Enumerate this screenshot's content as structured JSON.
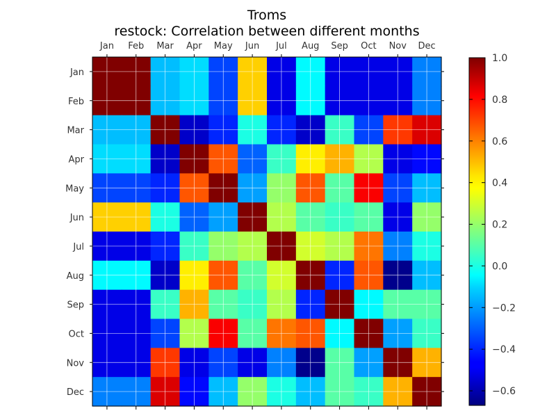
{
  "chart_data": {
    "type": "heatmap",
    "title": "Troms",
    "subtitle": "restock: Correlation between different months",
    "x_categories": [
      "Jan",
      "Feb",
      "Mar",
      "Apr",
      "May",
      "Jun",
      "Jul",
      "Aug",
      "Sep",
      "Oct",
      "Nov",
      "Dec"
    ],
    "y_categories": [
      "Jan",
      "Feb",
      "Mar",
      "Apr",
      "May",
      "Jun",
      "Jul",
      "Aug",
      "Sep",
      "Oct",
      "Nov",
      "Dec"
    ],
    "values": [
      [
        1.0,
        1.0,
        -0.15,
        -0.1,
        -0.35,
        0.45,
        -0.5,
        -0.05,
        -0.5,
        -0.5,
        -0.5,
        -0.25
      ],
      [
        1.0,
        1.0,
        -0.15,
        -0.1,
        -0.35,
        0.45,
        -0.5,
        -0.05,
        -0.5,
        -0.5,
        -0.5,
        -0.25
      ],
      [
        -0.15,
        -0.15,
        1.0,
        -0.55,
        -0.4,
        0.0,
        -0.4,
        -0.55,
        0.05,
        -0.35,
        0.7,
        0.85
      ],
      [
        -0.1,
        -0.1,
        -0.55,
        1.0,
        0.65,
        -0.3,
        0.05,
        0.4,
        0.5,
        0.25,
        -0.5,
        -0.45
      ],
      [
        -0.35,
        -0.35,
        -0.4,
        0.65,
        1.0,
        -0.2,
        0.2,
        0.65,
        0.1,
        0.8,
        -0.35,
        -0.15
      ],
      [
        0.45,
        0.45,
        0.0,
        -0.3,
        -0.2,
        1.0,
        0.25,
        0.1,
        0.05,
        0.1,
        -0.5,
        0.2
      ],
      [
        -0.5,
        -0.5,
        -0.4,
        0.05,
        0.2,
        0.25,
        1.0,
        0.3,
        0.25,
        0.6,
        -0.25,
        0.0
      ],
      [
        -0.05,
        -0.05,
        -0.55,
        0.4,
        0.65,
        0.1,
        0.3,
        1.0,
        -0.4,
        0.65,
        -0.65,
        -0.15
      ],
      [
        -0.5,
        -0.5,
        0.05,
        0.5,
        0.1,
        0.05,
        0.25,
        -0.4,
        1.0,
        -0.05,
        0.1,
        0.1
      ],
      [
        -0.5,
        -0.5,
        -0.35,
        0.25,
        0.8,
        0.1,
        0.6,
        0.65,
        -0.05,
        1.0,
        -0.2,
        0.05
      ],
      [
        -0.5,
        -0.5,
        0.7,
        -0.5,
        -0.35,
        -0.5,
        -0.25,
        -0.65,
        0.1,
        -0.2,
        1.0,
        0.5
      ],
      [
        -0.25,
        -0.25,
        0.85,
        -0.45,
        -0.15,
        0.2,
        0.0,
        -0.15,
        0.1,
        0.05,
        0.5,
        1.0
      ]
    ],
    "colorbar": {
      "min": -0.67,
      "max": 1.0,
      "ticks": [
        1.0,
        0.8,
        0.6,
        0.4,
        0.2,
        0.0,
        -0.2,
        -0.4,
        -0.6
      ],
      "tick_labels": [
        "1.0",
        "0.8",
        "0.6",
        "0.4",
        "0.2",
        "0.0",
        "−0.2",
        "−0.4",
        "−0.6"
      ],
      "colormap": "jet"
    },
    "grid": true,
    "x_ticks_position": "top"
  }
}
